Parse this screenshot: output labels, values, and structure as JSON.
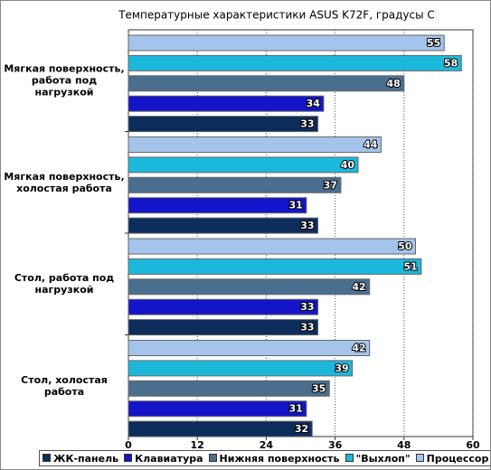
{
  "chart_data": {
    "type": "hbar",
    "title": "Температурные характеристики ASUS K72F, градусы С",
    "categories": [
      "Мягкая поверхность, работа под нагрузкой",
      "Мягкая поверхность, холостая работа",
      "Стол, работа под нагрузкой",
      "Стол, холостая работа"
    ],
    "series": [
      {
        "name": "ЖК-панель",
        "color": "#0c2c5c",
        "values": [
          33,
          33,
          33,
          32
        ]
      },
      {
        "name": "Клавиатура",
        "color": "#1414c8",
        "values": [
          34,
          31,
          33,
          31
        ]
      },
      {
        "name": "Нижняя поверхность",
        "color": "#4a6e8e",
        "values": [
          48,
          37,
          42,
          35
        ]
      },
      {
        "name": "\"Выхлоп\"",
        "color": "#1cb8dc",
        "values": [
          58,
          40,
          51,
          39
        ]
      },
      {
        "name": "Процессор",
        "color": "#a4c4ec",
        "values": [
          55,
          44,
          50,
          42
        ]
      }
    ],
    "xlim": [
      0,
      60
    ],
    "xticks": [
      0,
      12,
      24,
      36,
      48,
      60
    ],
    "grid": true
  }
}
